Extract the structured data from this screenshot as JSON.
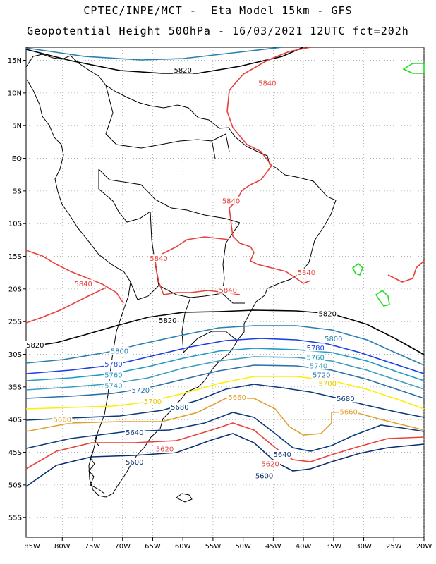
{
  "header": {
    "line1": "CPTEC/INPE/MCT -  Eta Model 15km - GFS",
    "line2": "Geopotential Height 500hPa - 16/03/2021 12UTC fct=202h"
  },
  "axes": {
    "lat_labels": [
      "15N",
      "10N",
      "5N",
      "EQ",
      "5S",
      "10S",
      "15S",
      "20S",
      "25S",
      "30S",
      "35S",
      "40S",
      "45S",
      "50S",
      "55S"
    ],
    "lon_labels": [
      "85W",
      "80W",
      "75W",
      "70W",
      "65W",
      "60W",
      "55W",
      "50W",
      "45W",
      "40W",
      "35W",
      "30W",
      "25W",
      "20W"
    ],
    "lat_range": [
      17,
      -58
    ],
    "lon_range": [
      -86,
      -20
    ],
    "grid": "dotted every 5 degrees"
  },
  "contour_colors": {
    "5840": "#e8413c",
    "5820": "#000000",
    "5800": "#2a7fb0",
    "5780": "#1a3ee8",
    "5760": "#1e9bc4",
    "5740": "#3a9ec0",
    "5720": "#2a6fa8",
    "5700": "#ffee00",
    "5680": "#0d3a7a",
    "5660": "#e0a030",
    "5640": "#0d3a7a",
    "5620": "#e8413c",
    "5600": "#0d2f70",
    "5880": "#22dd22"
  },
  "contour_labels": [
    {
      "text": "5820",
      "lon": -60,
      "lat": 13.5,
      "color": "#000000"
    },
    {
      "text": "5840",
      "lon": -46,
      "lat": 11.5,
      "color": "#e8413c"
    },
    {
      "text": "5840",
      "lon": -52,
      "lat": -6.5,
      "color": "#e8413c"
    },
    {
      "text": "5840",
      "lon": -64,
      "lat": -15.3,
      "color": "#e8413c"
    },
    {
      "text": "5840",
      "lon": -39.5,
      "lat": -17.5,
      "color": "#e8413c"
    },
    {
      "text": "5840",
      "lon": -76.5,
      "lat": -19.2,
      "color": "#e8413c"
    },
    {
      "text": "5840",
      "lon": -52.5,
      "lat": -20.2,
      "color": "#e8413c"
    },
    {
      "text": "5820",
      "lon": -36,
      "lat": -23.8,
      "color": "#000000"
    },
    {
      "text": "5820",
      "lon": -62.5,
      "lat": -24.8,
      "color": "#000000"
    },
    {
      "text": "5820",
      "lon": -84.5,
      "lat": -28.6,
      "color": "#000000"
    },
    {
      "text": "5800",
      "lon": -35,
      "lat": -27.6,
      "color": "#2a7fb0"
    },
    {
      "text": "5800",
      "lon": -70.5,
      "lat": -29.5,
      "color": "#2a7fb0"
    },
    {
      "text": "5780",
      "lon": -38,
      "lat": -29.0,
      "color": "#1a3ee8"
    },
    {
      "text": "5780",
      "lon": -71.5,
      "lat": -31.5,
      "color": "#1a3ee8"
    },
    {
      "text": "5760",
      "lon": -38,
      "lat": -30.5,
      "color": "#1e9bc4"
    },
    {
      "text": "5760",
      "lon": -71.5,
      "lat": -33.2,
      "color": "#1e9bc4"
    },
    {
      "text": "5740",
      "lon": -37.5,
      "lat": -31.8,
      "color": "#3a9ec0"
    },
    {
      "text": "5740",
      "lon": -71.5,
      "lat": -34.8,
      "color": "#3a9ec0"
    },
    {
      "text": "5720",
      "lon": -37,
      "lat": -33.2,
      "color": "#2a6fa8"
    },
    {
      "text": "5720",
      "lon": -67,
      "lat": -35.5,
      "color": "#2a6fa8"
    },
    {
      "text": "5700",
      "lon": -36,
      "lat": -34.5,
      "color": "#e6c800"
    },
    {
      "text": "5700",
      "lon": -65,
      "lat": -37.2,
      "color": "#e6c800"
    },
    {
      "text": "5680",
      "lon": -33,
      "lat": -36.8,
      "color": "#0d3a7a"
    },
    {
      "text": "5680",
      "lon": -60.5,
      "lat": -38.1,
      "color": "#0d3a7a"
    },
    {
      "text": "5660",
      "lon": -51,
      "lat": -36.6,
      "color": "#e0a030"
    },
    {
      "text": "5660",
      "lon": -32.5,
      "lat": -38.8,
      "color": "#e0a030"
    },
    {
      "text": "5660",
      "lon": -80,
      "lat": -40.0,
      "color": "#e0a030"
    },
    {
      "text": "5640",
      "lon": -68,
      "lat": -42.0,
      "color": "#0d3a7a"
    },
    {
      "text": "5640",
      "lon": -43.5,
      "lat": -45.3,
      "color": "#0d3a7a"
    },
    {
      "text": "5620",
      "lon": -63,
      "lat": -44.5,
      "color": "#e8413c"
    },
    {
      "text": "5620",
      "lon": -45.5,
      "lat": -46.8,
      "color": "#e8413c"
    },
    {
      "text": "5600",
      "lon": -68,
      "lat": -46.5,
      "color": "#0d2f70"
    },
    {
      "text": "5600",
      "lon": -46.5,
      "lat": -48.6,
      "color": "#0d2f70"
    }
  ]
}
